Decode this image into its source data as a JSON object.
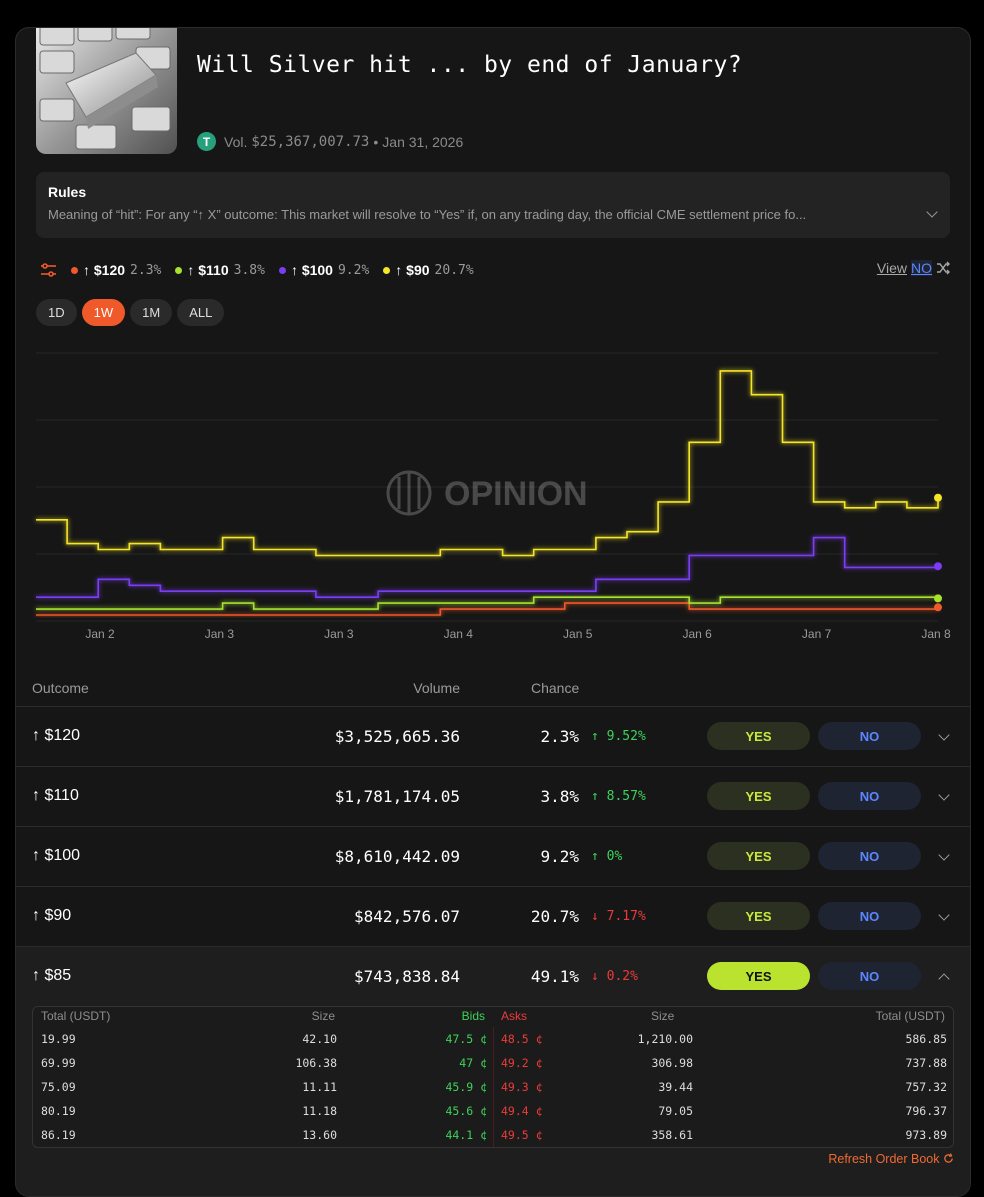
{
  "header": {
    "title": "Will Silver hit ... by end of January?",
    "vol_label": "Vol.",
    "volume": "$25,367,007.73",
    "separator": "•",
    "date": "Jan 31, 2026",
    "coin_letter": "T"
  },
  "rules": {
    "title": "Rules",
    "text": "Meaning of “hit”: For any “↑ X” outcome: This market will resolve to “Yes” if, on any trading day, the official CME settlement price fo..."
  },
  "legend": [
    {
      "label": "↑ $120",
      "pct": "2.3%",
      "color": "#f0592a"
    },
    {
      "label": "↑ $110",
      "pct": "3.8%",
      "color": "#a6e22e"
    },
    {
      "label": "↑ $100",
      "pct": "9.2%",
      "color": "#7b3cf5"
    },
    {
      "label": "↑ $90",
      "pct": "20.7%",
      "color": "#f5e628"
    }
  ],
  "view": {
    "prefix": "View",
    "no": "NO"
  },
  "ranges": [
    "1D",
    "1W",
    "1M",
    "ALL"
  ],
  "active_range": "1W",
  "watermark": "OPINION",
  "chart_data": {
    "type": "line",
    "x_ticks": [
      "Jan 2",
      "Jan 3",
      "Jan 3",
      "Jan 4",
      "Jan 5",
      "Jan 6",
      "Jan 7",
      "Jan 8"
    ],
    "series": [
      {
        "name": "↑ $90",
        "color": "#f5e628",
        "values": [
          0.17,
          0.13,
          0.12,
          0.13,
          0.12,
          0.12,
          0.14,
          0.12,
          0.12,
          0.11,
          0.11,
          0.11,
          0.11,
          0.12,
          0.12,
          0.11,
          0.12,
          0.12,
          0.14,
          0.15,
          0.2,
          0.3,
          0.42,
          0.38,
          0.3,
          0.2,
          0.19,
          0.2,
          0.19,
          0.207
        ]
      },
      {
        "name": "↑ $100",
        "color": "#7b3cf5",
        "values": [
          0.04,
          0.04,
          0.07,
          0.06,
          0.05,
          0.05,
          0.05,
          0.05,
          0.05,
          0.04,
          0.04,
          0.05,
          0.05,
          0.05,
          0.05,
          0.05,
          0.05,
          0.05,
          0.07,
          0.07,
          0.07,
          0.11,
          0.11,
          0.11,
          0.11,
          0.14,
          0.09,
          0.09,
          0.09,
          0.092
        ]
      },
      {
        "name": "↑ $110",
        "color": "#a6e22e",
        "values": [
          0.02,
          0.02,
          0.02,
          0.02,
          0.02,
          0.02,
          0.03,
          0.02,
          0.02,
          0.02,
          0.02,
          0.03,
          0.03,
          0.03,
          0.03,
          0.03,
          0.04,
          0.04,
          0.04,
          0.04,
          0.04,
          0.03,
          0.04,
          0.04,
          0.04,
          0.04,
          0.04,
          0.04,
          0.04,
          0.038
        ]
      },
      {
        "name": "↑ $120",
        "color": "#f0592a",
        "values": [
          0.01,
          0.01,
          0.01,
          0.01,
          0.01,
          0.01,
          0.01,
          0.01,
          0.01,
          0.01,
          0.01,
          0.01,
          0.01,
          0.02,
          0.02,
          0.02,
          0.02,
          0.03,
          0.03,
          0.03,
          0.03,
          0.02,
          0.02,
          0.02,
          0.02,
          0.02,
          0.02,
          0.02,
          0.02,
          0.023
        ]
      }
    ],
    "ylim": [
      0,
      0.45
    ]
  },
  "table": {
    "headers": {
      "outcome": "Outcome",
      "volume": "Volume",
      "chance": "Chance"
    },
    "yes": "YES",
    "no": "NO",
    "rows": [
      {
        "outcome": "↑ $120",
        "volume": "$3,525,665.36",
        "chance": "2.3%",
        "change": "↑ 9.52%",
        "dir": "up"
      },
      {
        "outcome": "↑ $110",
        "volume": "$1,781,174.05",
        "chance": "3.8%",
        "change": "↑ 8.57%",
        "dir": "up"
      },
      {
        "outcome": "↑ $100",
        "volume": "$8,610,442.09",
        "chance": "9.2%",
        "change": "↑ 0%",
        "dir": "up"
      },
      {
        "outcome": "↑ $90",
        "volume": "$842,576.07",
        "chance": "20.7%",
        "change": "↓ 7.17%",
        "dir": "down"
      },
      {
        "outcome": "↑ $85",
        "volume": "$743,838.84",
        "chance": "49.1%",
        "change": "↓ 0.2%",
        "dir": "down"
      }
    ]
  },
  "order_book": {
    "headers": {
      "total_l": "Total (USDT)",
      "size_l": "Size",
      "bids": "Bids",
      "asks": "Asks",
      "size_r": "Size",
      "total_r": "Total (USDT)"
    },
    "rows": [
      {
        "total_l": "19.99",
        "size_l": "42.10",
        "bid": "47.5 ¢",
        "ask": "48.5 ¢",
        "size_r": "1,210.00",
        "total_r": "586.85"
      },
      {
        "total_l": "69.99",
        "size_l": "106.38",
        "bid": "47 ¢",
        "ask": "49.2 ¢",
        "size_r": "306.98",
        "total_r": "737.88"
      },
      {
        "total_l": "75.09",
        "size_l": "11.11",
        "bid": "45.9 ¢",
        "ask": "49.3 ¢",
        "size_r": "39.44",
        "total_r": "757.32"
      },
      {
        "total_l": "80.19",
        "size_l": "11.18",
        "bid": "45.6 ¢",
        "ask": "49.4 ¢",
        "size_r": "79.05",
        "total_r": "796.37"
      },
      {
        "total_l": "86.19",
        "size_l": "13.60",
        "bid": "44.1 ¢",
        "ask": "49.5 ¢",
        "size_r": "358.61",
        "total_r": "973.89"
      }
    ],
    "refresh": "Refresh Order Book"
  }
}
